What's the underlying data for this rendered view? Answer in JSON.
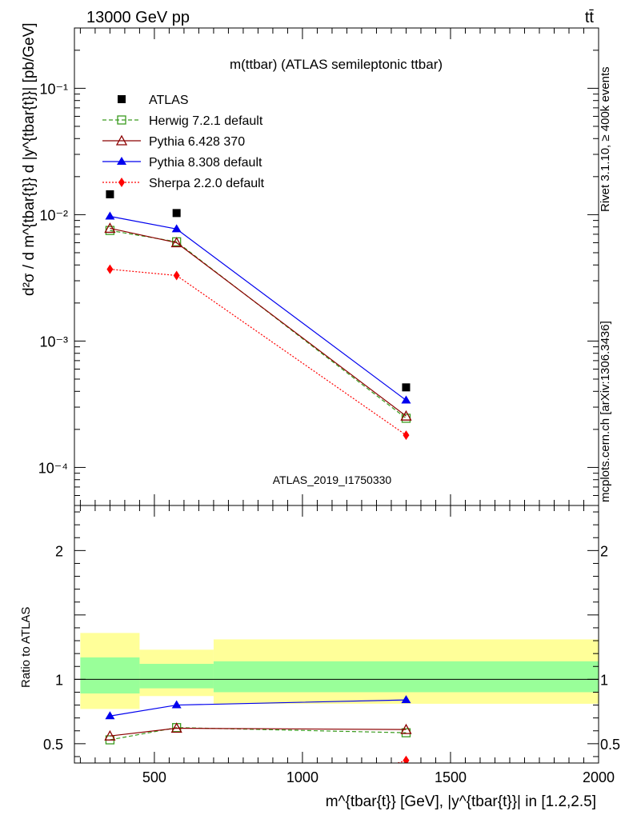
{
  "header": {
    "left": "13000 GeV pp",
    "right": "tt̄"
  },
  "side_labels": {
    "rivet": "Rivet 3.1.10, ≥ 400k events",
    "mcplots": "mcplots.cern.ch [arXiv:1306.3436]"
  },
  "chart_data": [
    {
      "type": "line",
      "title": "m(ttbar) (ATLAS semileptonic ttbar)",
      "watermark": "ATLAS_2019_I1750330",
      "ylabel": "d²σ / d m^{tbar{t}} d |y^{tbar{t}}| [pb/GeV]",
      "y_scale": "log",
      "xlim": [
        230,
        2000
      ],
      "ylim": [
        5e-05,
        0.3
      ],
      "y_tick_labels": [
        "10⁻⁴",
        "10⁻³",
        "10⁻²",
        "10⁻¹"
      ],
      "legend_position": "top-left",
      "series": [
        {
          "name": "ATLAS",
          "color": "#000000",
          "marker": "filled-square",
          "line": "none",
          "x": [
            350,
            575,
            1350
          ],
          "y": [
            0.0145,
            0.0103,
            0.00043
          ]
        },
        {
          "name": "Herwig 7.2.1 default",
          "color": "#3a9a1e",
          "marker": "open-square",
          "line": "dashed",
          "x": [
            350,
            575,
            1350
          ],
          "y": [
            0.0075,
            0.0061,
            0.000245
          ]
        },
        {
          "name": "Pythia 6.428 370",
          "color": "#8b0000",
          "marker": "open-triangle",
          "line": "solid",
          "x": [
            350,
            575,
            1350
          ],
          "y": [
            0.0078,
            0.006,
            0.000255
          ]
        },
        {
          "name": "Pythia 8.308 default",
          "color": "#0000ee",
          "marker": "filled-triangle",
          "line": "solid",
          "x": [
            350,
            575,
            1350
          ],
          "y": [
            0.0097,
            0.0077,
            0.00034
          ]
        },
        {
          "name": "Sherpa 2.2.0 default",
          "color": "#ff0000",
          "marker": "filled-diamond",
          "line": "dotted",
          "x": [
            350,
            575,
            1350
          ],
          "y": [
            0.0037,
            0.0033,
            0.00018
          ]
        }
      ]
    },
    {
      "type": "line",
      "ylabel": "Ratio to ATLAS",
      "xlabel": "m^{tbar{t}} [GeV], |y^{tbar{t}}| in [1.2,2.5]",
      "xlim": [
        230,
        2000
      ],
      "ylim": [
        0.35,
        2.35
      ],
      "x_ticks": [
        500,
        1000,
        1500,
        2000
      ],
      "x_tick_labels": [
        "500",
        "1000",
        "1500",
        "2000"
      ],
      "y_ticks": [
        0.5,
        1,
        2
      ],
      "y_tick_labels": [
        "0.5",
        "1",
        "2"
      ],
      "reference_line": 1,
      "bands": [
        {
          "x0": 250,
          "x1": 450,
          "green": [
            0.89,
            1.17
          ],
          "yellow": [
            0.77,
            1.36
          ]
        },
        {
          "x0": 450,
          "x1": 700,
          "green": [
            0.93,
            1.12
          ],
          "yellow": [
            0.87,
            1.23
          ]
        },
        {
          "x0": 700,
          "x1": 2000,
          "green": [
            0.9,
            1.14
          ],
          "yellow": [
            0.81,
            1.31
          ]
        }
      ],
      "series": [
        {
          "name": "Herwig 7.2.1 default",
          "color": "#3a9a1e",
          "marker": "open-square",
          "line": "dashed",
          "x": [
            350,
            575,
            1350
          ],
          "y": [
            0.53,
            0.625,
            0.585
          ]
        },
        {
          "name": "Pythia 6.428 370",
          "color": "#8b0000",
          "marker": "open-triangle",
          "line": "solid",
          "x": [
            350,
            575,
            1350
          ],
          "y": [
            0.56,
            0.62,
            0.61
          ]
        },
        {
          "name": "Pythia 8.308 default",
          "color": "#0000ee",
          "marker": "filled-triangle",
          "line": "solid",
          "x": [
            350,
            575,
            1350
          ],
          "y": [
            0.715,
            0.8,
            0.84
          ]
        },
        {
          "name": "Sherpa 2.2.0 default",
          "color": "#ff0000",
          "marker": "filled-diamond",
          "line": "dotted",
          "x": [
            1250,
            1350
          ],
          "y": [
            0.3,
            0.37
          ]
        }
      ]
    }
  ]
}
